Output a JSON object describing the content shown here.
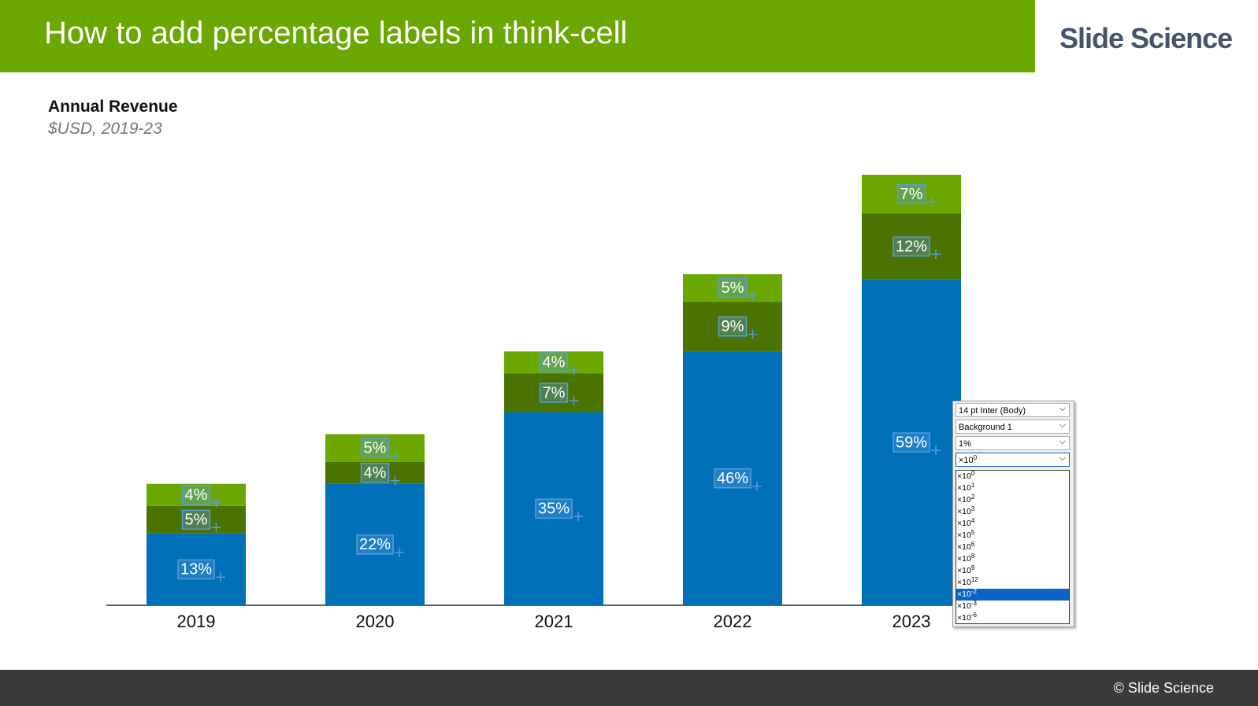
{
  "header": {
    "title": "How to add percentage labels in think-cell",
    "brand": "Slide Science"
  },
  "chart_data": {
    "type": "stacked-bar",
    "title": "Annual Revenue",
    "subtitle": "$USD, 2019-23",
    "categories": [
      "2019",
      "2020",
      "2021",
      "2022",
      "2023"
    ],
    "series": [
      {
        "color": "#0070b8",
        "values": [
          13,
          22,
          35,
          46,
          59
        ],
        "value_labels": [
          "13%",
          "22%",
          "35%",
          "46%",
          "59%"
        ]
      },
      {
        "color": "#4a7300",
        "values": [
          5,
          4,
          7,
          9,
          12
        ],
        "value_labels": [
          "5%",
          "4%",
          "7%",
          "9%",
          "12%"
        ]
      },
      {
        "color": "#6aa800",
        "values": [
          4,
          5,
          4,
          5,
          7
        ],
        "value_labels": [
          "4%",
          "5%",
          "4%",
          "5%",
          "7%"
        ]
      }
    ]
  },
  "dropdown": {
    "font": "14 pt Inter (Body)",
    "color": "Background 1",
    "format": "1%",
    "selected": {
      "mantissa": "×10",
      "exponent": "0"
    },
    "items": [
      {
        "mantissa": "×10",
        "exponent": "0"
      },
      {
        "mantissa": "×10",
        "exponent": "1"
      },
      {
        "mantissa": "×10",
        "exponent": "2"
      },
      {
        "mantissa": "×10",
        "exponent": "3"
      },
      {
        "mantissa": "×10",
        "exponent": "4"
      },
      {
        "mantissa": "×10",
        "exponent": "5"
      },
      {
        "mantissa": "×10",
        "exponent": "6"
      },
      {
        "mantissa": "×10",
        "exponent": "8"
      },
      {
        "mantissa": "×10",
        "exponent": "9"
      },
      {
        "mantissa": "×10",
        "exponent": "12"
      },
      {
        "mantissa": "×10",
        "exponent": "-2"
      },
      {
        "mantissa": "×10",
        "exponent": "-3"
      },
      {
        "mantissa": "×10",
        "exponent": "-6"
      }
    ]
  },
  "footer": {
    "text": "© Slide Science"
  }
}
